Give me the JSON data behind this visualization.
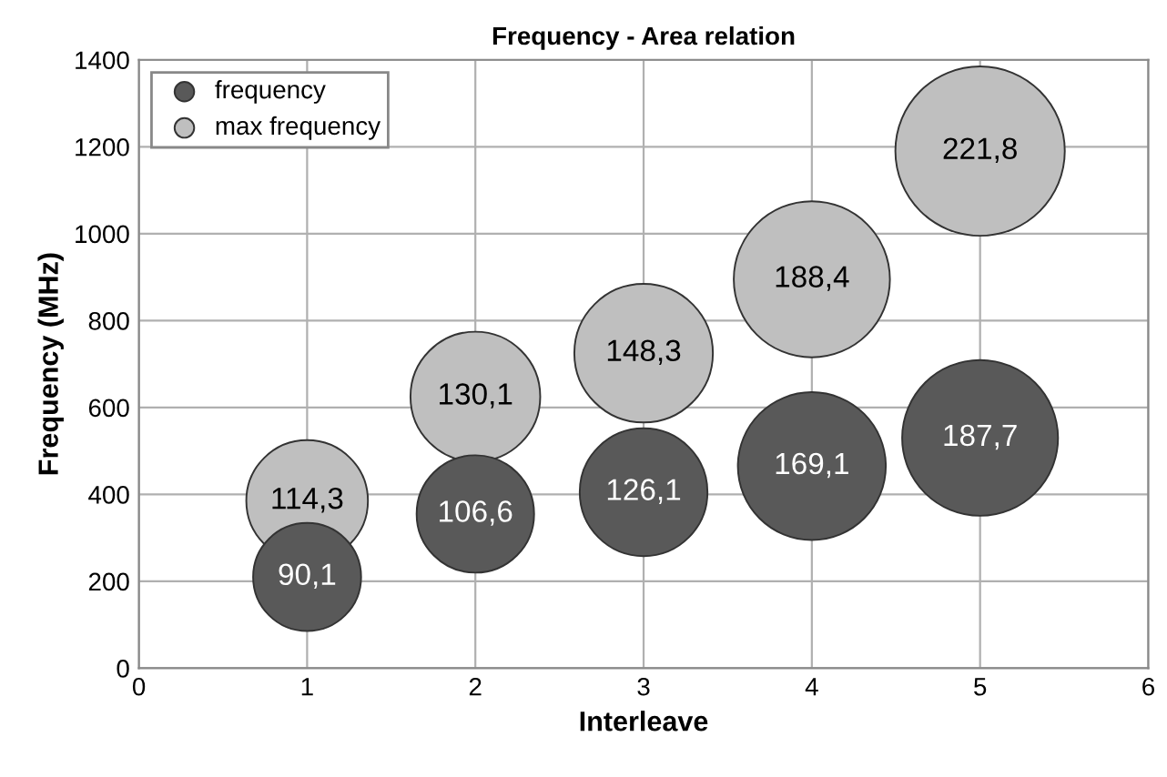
{
  "chart_data": {
    "type": "bubble",
    "title": "Frequency - Area relation",
    "xlabel": "Interleave",
    "ylabel": "Frequency (MHz)",
    "xlim": [
      0,
      6
    ],
    "xticks": [
      0,
      1,
      2,
      3,
      4,
      5,
      6
    ],
    "ylim": [
      0,
      1400
    ],
    "yticks": [
      0,
      200,
      400,
      600,
      800,
      1000,
      1200,
      1400
    ],
    "grid": true,
    "legend": "top left",
    "marker": "circle",
    "series": [
      {
        "name": "frequency",
        "color": "#595959",
        "x": [
          1,
          2,
          3,
          4,
          5
        ],
        "values": [
          210,
          355,
          405,
          465,
          530
        ],
        "sizes": [
          90.1,
          106.6,
          126.1,
          169.1,
          187.7
        ],
        "value_labels": [
          "90,1",
          "106,6",
          "126,1",
          "169,1",
          "187,7"
        ]
      },
      {
        "name": "max frequency",
        "color": "#bfbfbf",
        "x": [
          1,
          2,
          3,
          4,
          5
        ],
        "values": [
          385,
          625,
          725,
          895,
          1190
        ],
        "sizes": [
          114.3,
          130.1,
          148.3,
          188.4,
          221.8
        ],
        "value_labels": [
          "114,3",
          "130,1",
          "148,3",
          "188,4",
          "221,8"
        ]
      }
    ]
  }
}
